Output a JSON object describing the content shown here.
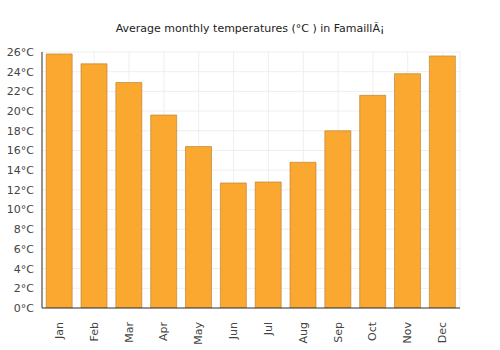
{
  "chart_data": {
    "type": "bar",
    "title": "Average monthly temperatures (°C ) in FamaillÃ¡",
    "categories": [
      "Jan",
      "Feb",
      "Mar",
      "Apr",
      "May",
      "Jun",
      "Jul",
      "Aug",
      "Sep",
      "Oct",
      "Nov",
      "Dec"
    ],
    "values": [
      25.8,
      24.8,
      22.9,
      19.6,
      16.4,
      12.7,
      12.8,
      14.8,
      18.0,
      21.6,
      23.8,
      25.6
    ],
    "color": "#fba830",
    "ylim": [
      0,
      26
    ],
    "yticks": [
      {
        "value": 0,
        "label": "0°C"
      },
      {
        "value": 2,
        "label": "2°C"
      },
      {
        "value": 4,
        "label": "4°C"
      },
      {
        "value": 6,
        "label": "6°C"
      },
      {
        "value": 8,
        "label": "8°C"
      },
      {
        "value": 10,
        "label": "10°C"
      },
      {
        "value": 12,
        "label": "12°C"
      },
      {
        "value": 14,
        "label": "14°C"
      },
      {
        "value": 16,
        "label": "16°C"
      },
      {
        "value": 18,
        "label": "18°C"
      },
      {
        "value": 20,
        "label": "20°C"
      },
      {
        "value": 22,
        "label": "22°C"
      },
      {
        "value": 24,
        "label": "24°C"
      },
      {
        "value": 26,
        "label": "26°C"
      }
    ],
    "grid": true
  }
}
